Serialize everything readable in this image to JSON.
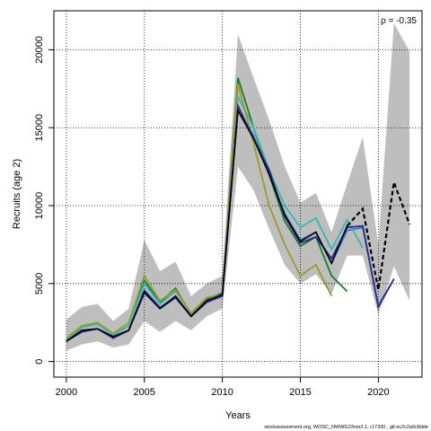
{
  "chart_data": {
    "type": "line",
    "title": "",
    "xlabel": "Years",
    "ylabel": "Recruits (age 2)",
    "xlim": [
      1999.2,
      2022.8
    ],
    "ylim": [
      -1000,
      22500
    ],
    "xticks": [
      2000,
      2005,
      2010,
      2015,
      2020
    ],
    "xtick_labels": [
      "2000",
      "2005",
      "2010",
      "2015",
      "2020"
    ],
    "yticks": [
      0,
      5000,
      10000,
      15000,
      20000
    ],
    "ytick_labels": [
      "0",
      "5000",
      "10000",
      "15000",
      "20000"
    ],
    "grid": true,
    "annotation": "ρ = -0.35",
    "credit": "stockassessment.org, WOSC_NWWG23ver2.1, r17330 , git:ec2c2a0c8dde",
    "colors": {
      "band": "#bebebe",
      "main": "#000000",
      "teal": "#3cb7b0",
      "olive": "#9a9a2e",
      "green": "#1a7a2e",
      "navy": "#2a2a8a",
      "blue": "#3a7bd0"
    },
    "confidence_band": {
      "x": [
        2000,
        2001,
        2002,
        2003,
        2004,
        2005,
        2006,
        2007,
        2008,
        2009,
        2010,
        2011,
        2012,
        2013,
        2014,
        2015,
        2016,
        2017,
        2018,
        2019,
        2020,
        2021,
        2022
      ],
      "upper": [
        2700,
        3500,
        3700,
        2600,
        3400,
        7800,
        5800,
        6400,
        4200,
        5000,
        5500,
        21000,
        18200,
        15500,
        12500,
        10200,
        10800,
        8300,
        11400,
        14400,
        7500,
        21700,
        19900
      ],
      "lower": [
        700,
        1100,
        1300,
        900,
        1100,
        2600,
        1900,
        2600,
        2000,
        2900,
        3400,
        12500,
        11000,
        8500,
        6200,
        5000,
        5600,
        4300,
        6800,
        6800,
        3000,
        6100,
        3900
      ]
    },
    "series": [
      {
        "name": "",
        "color": "#1a7a2e",
        "dash": "solid",
        "x": [
          2000,
          2001,
          2002,
          2003,
          2004,
          2005,
          2006,
          2007,
          2008,
          2009,
          2010,
          2011,
          2012,
          2013,
          2014,
          2015,
          2016,
          2017,
          2018
        ],
        "values": [
          1300,
          2200,
          2500,
          1700,
          2300,
          5200,
          3800,
          4700,
          3000,
          4000,
          4400,
          18200,
          15000,
          12000,
          9000,
          7400,
          8000,
          5500,
          4500
        ]
      },
      {
        "name": "",
        "color": "#3cb7b0",
        "dash": "solid",
        "x": [
          2000,
          2001,
          2002,
          2003,
          2004,
          2005,
          2006,
          2007,
          2008,
          2009,
          2010,
          2011,
          2012,
          2013,
          2014,
          2015,
          2016,
          2017,
          2018,
          2019
        ],
        "values": [
          1400,
          2200,
          2400,
          1700,
          2300,
          5000,
          3700,
          4500,
          3100,
          4100,
          4300,
          17000,
          15000,
          12300,
          10000,
          8600,
          9200,
          7200,
          9100,
          7300
        ]
      },
      {
        "name": "",
        "color": "#9a9a2e",
        "dash": "solid",
        "x": [
          2000,
          2001,
          2002,
          2003,
          2004,
          2005,
          2006,
          2007,
          2008,
          2009,
          2010,
          2011,
          2012,
          2013,
          2014,
          2015,
          2016,
          2017
        ],
        "values": [
          1500,
          2300,
          2500,
          1800,
          2500,
          5500,
          3900,
          4600,
          3100,
          4100,
          4300,
          17800,
          14000,
          10000,
          7500,
          5500,
          6200,
          4200
        ]
      },
      {
        "name": "",
        "color": "#3a7bd0",
        "dash": "solid",
        "x": [
          2000,
          2001,
          2002,
          2003,
          2004,
          2005,
          2006,
          2007,
          2008,
          2009,
          2010,
          2011,
          2012,
          2013,
          2014,
          2015,
          2016,
          2017,
          2018,
          2019,
          2020,
          2021
        ],
        "values": [
          1300,
          2000,
          2100,
          1600,
          2000,
          4600,
          3500,
          4100,
          2900,
          3900,
          4200,
          16200,
          14500,
          12000,
          9500,
          7800,
          8300,
          6300,
          8400,
          8600,
          3600,
          5300
        ]
      },
      {
        "name": "",
        "color": "#2a2a8a",
        "dash": "solid",
        "x": [
          2000,
          2001,
          2002,
          2003,
          2004,
          2005,
          2006,
          2007,
          2008,
          2009,
          2010,
          2011,
          2012,
          2013,
          2014,
          2015,
          2016,
          2017,
          2018,
          2019,
          2020,
          2021
        ],
        "values": [
          1300,
          1900,
          2100,
          1500,
          2000,
          4400,
          3400,
          4100,
          2900,
          3800,
          4200,
          16400,
          14300,
          12300,
          9300,
          7600,
          8000,
          6600,
          8600,
          8700,
          3500,
          5300
        ]
      },
      {
        "name": "",
        "color": "#000000",
        "dash": "solid",
        "x": [
          2000,
          2001,
          2002,
          2003,
          2004,
          2005,
          2006,
          2007,
          2008,
          2009,
          2010,
          2011,
          2012,
          2013,
          2014,
          2015,
          2016,
          2017,
          2018,
          2019,
          2020,
          2021,
          2022
        ],
        "values": [
          1300,
          2000,
          2100,
          1600,
          2000,
          4500,
          3400,
          4200,
          2900,
          3900,
          4300,
          16100,
          14300,
          12000,
          9400,
          7700,
          8300,
          6300,
          8700,
          9800,
          4600,
          11500,
          8800
        ]
      }
    ]
  }
}
